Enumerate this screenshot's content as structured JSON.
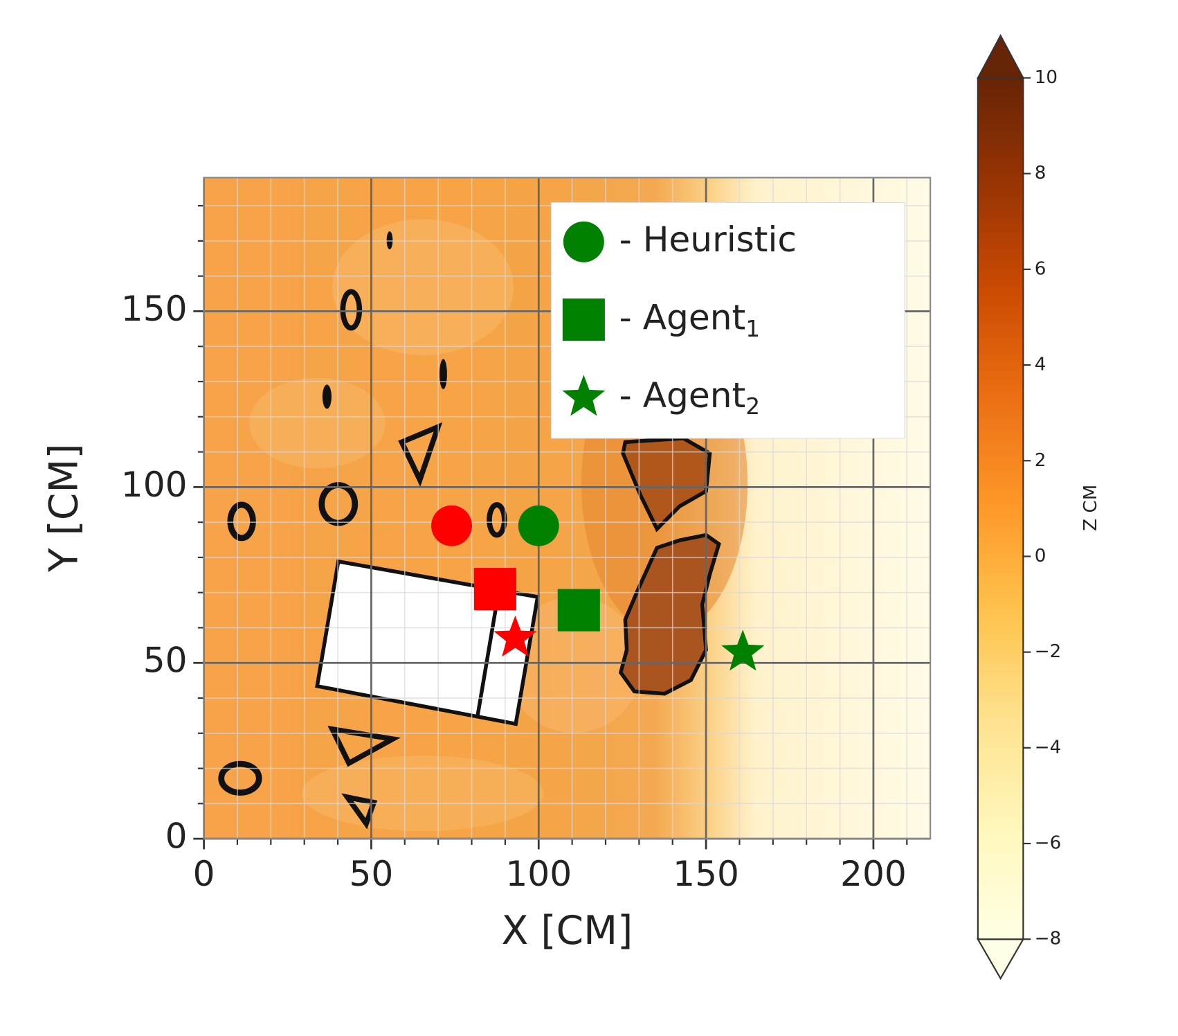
{
  "chart_data": {
    "type": "scatter",
    "x_label": "X [CM]",
    "y_label": "Y [CM]",
    "xlim": [
      0,
      217
    ],
    "ylim": [
      0,
      188
    ],
    "xticks": [
      0,
      50,
      100,
      150,
      200
    ],
    "yticks": [
      0,
      50,
      100,
      150
    ],
    "grid": true,
    "minor_grid": true,
    "legend": "upper right",
    "series": [
      {
        "name": "- Heuristic",
        "marker": "circle",
        "color": "green",
        "point_colors": [
          "red",
          "green"
        ],
        "x": [
          74,
          100
        ],
        "y": [
          89,
          89
        ]
      },
      {
        "name": "- Agent",
        "name_subscript": "1",
        "marker": "square",
        "color": "green",
        "point_colors": [
          "red",
          "green"
        ],
        "x": [
          87,
          112
        ],
        "y": [
          71,
          65
        ]
      },
      {
        "name": "- Agent",
        "name_subscript": "2",
        "marker": "star",
        "color": "green",
        "point_colors": [
          "red",
          "green"
        ],
        "x": [
          93,
          161
        ],
        "y": [
          57,
          53
        ]
      }
    ],
    "colorbar": {
      "label": "Z CM",
      "zlim": [
        -8,
        10
      ],
      "extend": "both",
      "ticks": [
        {
          "value": -8,
          "label": "−8"
        },
        {
          "value": -6,
          "label": "−6"
        },
        {
          "value": -4,
          "label": "−4"
        },
        {
          "value": -2,
          "label": "−2"
        },
        0,
        2,
        4,
        6,
        8,
        10
      ]
    }
  }
}
